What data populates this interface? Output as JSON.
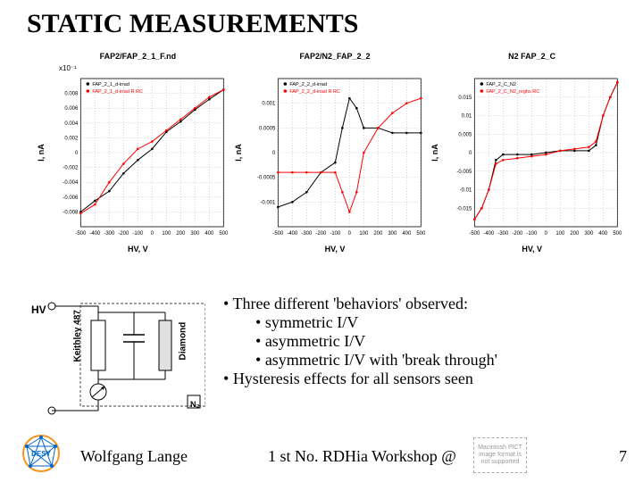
{
  "title": "STATIC MEASUREMENTS",
  "charts": [
    {
      "title": "FAP2/FAP_2_1_F.nd",
      "subtitle": "x10⁻¹",
      "ylabel": "I, nA",
      "xlabel": "HV, V",
      "type": "line",
      "xlim": [
        -500,
        500
      ],
      "ylim": [
        -0.01,
        0.01
      ],
      "xticks": [
        -500,
        -400,
        -300,
        -200,
        -100,
        0,
        100,
        200,
        300,
        400,
        500
      ],
      "yticks": [
        -0.008,
        -0.006,
        -0.004,
        -0.002,
        0,
        0.002,
        0.004,
        0.006,
        0.008
      ],
      "series": [
        {
          "color": "#000000",
          "legend": "FAP_2_1_d-irrad",
          "points": [
            [
              -500,
              -0.008
            ],
            [
              -400,
              -0.0065
            ],
            [
              -300,
              -0.0052
            ],
            [
              -200,
              -0.0028
            ],
            [
              -100,
              -0.001
            ],
            [
              0,
              0.0005
            ],
            [
              100,
              0.0028
            ],
            [
              200,
              0.0042
            ],
            [
              300,
              0.0058
            ],
            [
              400,
              0.0072
            ],
            [
              500,
              0.0085
            ]
          ]
        },
        {
          "color": "#ff0000",
          "legend": "FAP_2_1_d-irrad R RC",
          "points": [
            [
              -500,
              -0.0082
            ],
            [
              -400,
              -0.007
            ],
            [
              -300,
              -0.004
            ],
            [
              -200,
              -0.0015
            ],
            [
              -100,
              0.0005
            ],
            [
              0,
              0.0015
            ],
            [
              100,
              0.003
            ],
            [
              200,
              0.0045
            ],
            [
              300,
              0.006
            ],
            [
              400,
              0.0075
            ],
            [
              500,
              0.0085
            ]
          ]
        }
      ]
    },
    {
      "title": "FAP2/N2_FAP_2_2",
      "subtitle": "",
      "ylabel": "I, nA",
      "xlabel": "HV, V",
      "type": "line",
      "xlim": [
        -500,
        500
      ],
      "ylim": [
        -0.0015,
        0.0015
      ],
      "xticks": [
        -500,
        -400,
        -300,
        -200,
        -100,
        0,
        100,
        200,
        300,
        400,
        500
      ],
      "yticks": [
        -0.001,
        -0.0005,
        0,
        0.0005,
        0.001
      ],
      "series": [
        {
          "color": "#000000",
          "legend": "FAP_2_2_d-irrad",
          "points": [
            [
              -500,
              -0.0011
            ],
            [
              -400,
              -0.001
            ],
            [
              -300,
              -0.0008
            ],
            [
              -200,
              -0.0004
            ],
            [
              -100,
              -0.0002
            ],
            [
              -50,
              0.0005
            ],
            [
              0,
              0.0011
            ],
            [
              50,
              0.0009
            ],
            [
              100,
              0.0005
            ],
            [
              200,
              0.0005
            ],
            [
              300,
              0.0004
            ],
            [
              400,
              0.0004
            ],
            [
              500,
              0.0004
            ]
          ]
        },
        {
          "color": "#ff0000",
          "legend": "FAP_2_2_d-irrad R RC",
          "points": [
            [
              -500,
              -0.0004
            ],
            [
              -400,
              -0.0004
            ],
            [
              -300,
              -0.0004
            ],
            [
              -200,
              -0.0004
            ],
            [
              -100,
              -0.0004
            ],
            [
              -50,
              -0.0008
            ],
            [
              0,
              -0.0012
            ],
            [
              50,
              -0.0008
            ],
            [
              100,
              0.0
            ],
            [
              200,
              0.0005
            ],
            [
              300,
              0.0008
            ],
            [
              400,
              0.001
            ],
            [
              500,
              0.0011
            ]
          ]
        }
      ]
    },
    {
      "title": "N2 FAP_2_C",
      "subtitle": "",
      "ylabel": "I, nA",
      "xlabel": "HV, V",
      "type": "line",
      "xlim": [
        -500,
        500
      ],
      "ylim": [
        -0.02,
        0.02
      ],
      "xticks": [
        -500,
        -400,
        -300,
        -200,
        -100,
        0,
        100,
        200,
        300,
        400,
        500
      ],
      "yticks": [
        -0.015,
        -0.01,
        -0.005,
        0,
        0.005,
        0.01,
        0.015
      ],
      "series": [
        {
          "color": "#000000",
          "legend": "FAP_2_C_N2",
          "points": [
            [
              -500,
              -0.018
            ],
            [
              -450,
              -0.015
            ],
            [
              -400,
              -0.01
            ],
            [
              -350,
              -0.002
            ],
            [
              -300,
              -0.0005
            ],
            [
              -200,
              -0.0005
            ],
            [
              -100,
              -0.0005
            ],
            [
              0,
              0
            ],
            [
              100,
              0.0005
            ],
            [
              200,
              0.0005
            ],
            [
              300,
              0.0005
            ],
            [
              350,
              0.002
            ],
            [
              400,
              0.01
            ],
            [
              450,
              0.015
            ],
            [
              500,
              0.019
            ]
          ]
        },
        {
          "color": "#ff0000",
          "legend": "FAP_2_C_N2_reghs RC",
          "points": [
            [
              -500,
              -0.018
            ],
            [
              -450,
              -0.015
            ],
            [
              -400,
              -0.01
            ],
            [
              -350,
              -0.003
            ],
            [
              -300,
              -0.002
            ],
            [
              -200,
              -0.0015
            ],
            [
              -100,
              -0.001
            ],
            [
              0,
              -0.0005
            ],
            [
              100,
              0.0005
            ],
            [
              200,
              0.001
            ],
            [
              300,
              0.0015
            ],
            [
              350,
              0.003
            ],
            [
              400,
              0.01
            ],
            [
              450,
              0.015
            ],
            [
              500,
              0.019
            ]
          ]
        }
      ]
    }
  ],
  "schematic": {
    "hv": "HV",
    "keithley": "Keithley 487",
    "diamond": "Diamond",
    "n2": "N₂"
  },
  "bullets": {
    "line1": "Three different 'behaviors' observed:",
    "sub1": "symmetric I/V",
    "sub2": "asymmetric I/V",
    "sub3": "asymmetric I/V with 'break through'",
    "line2": "Hysteresis effects for all sensors seen"
  },
  "footer": {
    "author": "Wolfgang Lange",
    "event": "1 st No. RDHia Workshop @",
    "page": "7"
  },
  "colors": {
    "grid": "#777777",
    "axis": "#000000",
    "bg": "#ffffff"
  }
}
